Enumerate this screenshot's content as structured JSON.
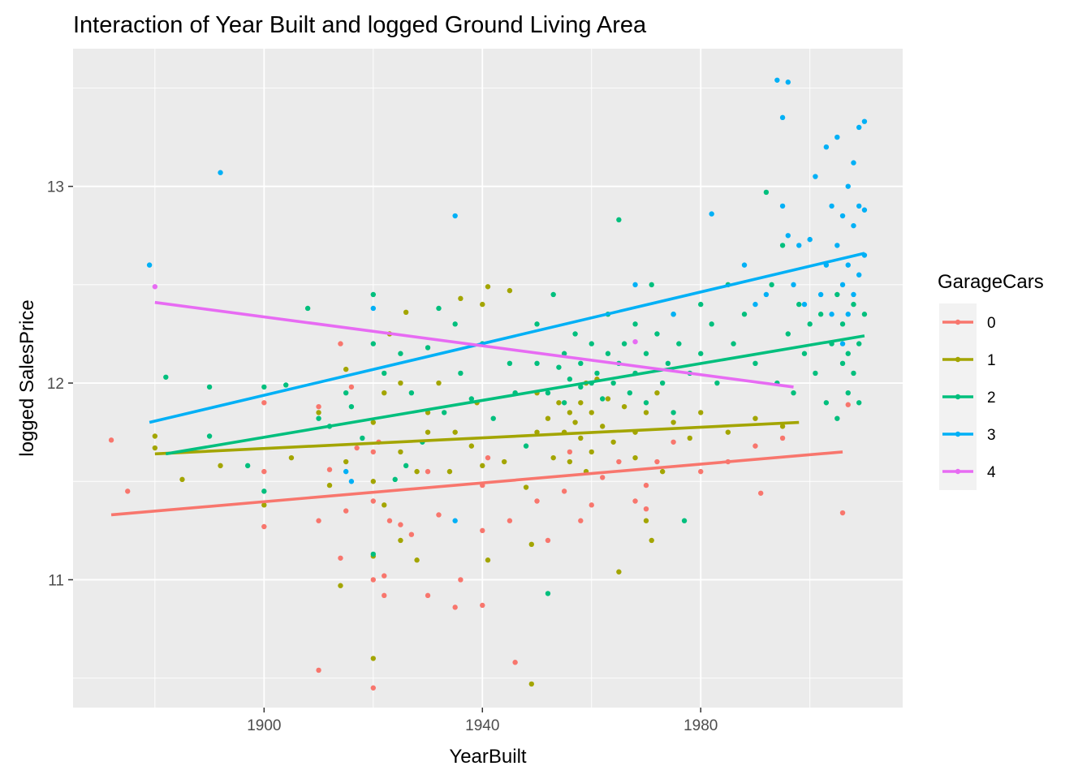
{
  "chart_data": {
    "type": "scatter",
    "title": "Interaction of Year Built and logged Ground Living Area",
    "xlabel": "YearBuilt",
    "ylabel": "logged SalesPrice",
    "xlim": [
      1865,
      2017
    ],
    "ylim": [
      10.35,
      13.7
    ],
    "x_ticks": [
      1900,
      1940,
      1980
    ],
    "y_ticks": [
      11,
      12,
      13
    ],
    "grid": true,
    "legend": {
      "title": "GarageCars",
      "position": "right"
    },
    "series": [
      {
        "name": "0",
        "color": "#F8766D",
        "trend": [
          [
            1872,
            11.33
          ],
          [
            2006,
            11.65
          ]
        ],
        "points": [
          [
            1872,
            11.71
          ],
          [
            1875,
            11.45
          ],
          [
            1900,
            11.9
          ],
          [
            1900,
            11.55
          ],
          [
            1900,
            11.27
          ],
          [
            1910,
            10.54
          ],
          [
            1910,
            11.3
          ],
          [
            1910,
            11.88
          ],
          [
            1912,
            11.56
          ],
          [
            1914,
            11.11
          ],
          [
            1914,
            12.2
          ],
          [
            1915,
            11.35
          ],
          [
            1916,
            11.98
          ],
          [
            1917,
            11.67
          ],
          [
            1920,
            11.65
          ],
          [
            1920,
            11.4
          ],
          [
            1920,
            11.0
          ],
          [
            1920,
            10.45
          ],
          [
            1921,
            11.7
          ],
          [
            1922,
            10.92
          ],
          [
            1922,
            11.02
          ],
          [
            1923,
            11.3
          ],
          [
            1925,
            11.28
          ],
          [
            1927,
            11.23
          ],
          [
            1930,
            11.55
          ],
          [
            1930,
            10.92
          ],
          [
            1932,
            11.33
          ],
          [
            1935,
            10.86
          ],
          [
            1936,
            11.0
          ],
          [
            1940,
            10.87
          ],
          [
            1940,
            11.25
          ],
          [
            1940,
            11.48
          ],
          [
            1941,
            11.62
          ],
          [
            1945,
            11.3
          ],
          [
            1946,
            10.58
          ],
          [
            1950,
            11.4
          ],
          [
            1952,
            11.2
          ],
          [
            1955,
            11.45
          ],
          [
            1956,
            11.65
          ],
          [
            1958,
            11.3
          ],
          [
            1960,
            11.38
          ],
          [
            1962,
            11.52
          ],
          [
            1965,
            11.6
          ],
          [
            1968,
            11.4
          ],
          [
            1970,
            11.48
          ],
          [
            1970,
            11.36
          ],
          [
            1972,
            11.6
          ],
          [
            1975,
            11.7
          ],
          [
            1980,
            11.55
          ],
          [
            1985,
            11.6
          ],
          [
            1990,
            11.68
          ],
          [
            1991,
            11.44
          ],
          [
            1995,
            11.72
          ],
          [
            2006,
            11.34
          ],
          [
            2007,
            11.89
          ]
        ]
      },
      {
        "name": "1",
        "color": "#A3A500",
        "trend": [
          [
            1880,
            11.64
          ],
          [
            1998,
            11.8
          ]
        ],
        "points": [
          [
            1880,
            11.73
          ],
          [
            1880,
            11.67
          ],
          [
            1885,
            11.51
          ],
          [
            1892,
            11.58
          ],
          [
            1900,
            11.38
          ],
          [
            1905,
            11.62
          ],
          [
            1910,
            11.85
          ],
          [
            1912,
            11.48
          ],
          [
            1914,
            10.97
          ],
          [
            1915,
            11.6
          ],
          [
            1915,
            12.07
          ],
          [
            1920,
            11.8
          ],
          [
            1920,
            11.5
          ],
          [
            1920,
            10.6
          ],
          [
            1920,
            11.12
          ],
          [
            1922,
            11.95
          ],
          [
            1922,
            11.38
          ],
          [
            1923,
            12.25
          ],
          [
            1925,
            12.0
          ],
          [
            1925,
            11.65
          ],
          [
            1925,
            11.2
          ],
          [
            1926,
            12.36
          ],
          [
            1928,
            11.55
          ],
          [
            1928,
            11.1
          ],
          [
            1930,
            11.75
          ],
          [
            1930,
            11.85
          ],
          [
            1932,
            12.0
          ],
          [
            1934,
            11.55
          ],
          [
            1935,
            11.75
          ],
          [
            1936,
            12.43
          ],
          [
            1938,
            11.68
          ],
          [
            1939,
            11.9
          ],
          [
            1940,
            12.4
          ],
          [
            1940,
            11.58
          ],
          [
            1941,
            12.49
          ],
          [
            1941,
            11.1
          ],
          [
            1944,
            11.6
          ],
          [
            1945,
            12.47
          ],
          [
            1948,
            11.47
          ],
          [
            1949,
            11.18
          ],
          [
            1949,
            10.47
          ],
          [
            1950,
            11.75
          ],
          [
            1950,
            11.95
          ],
          [
            1952,
            11.82
          ],
          [
            1953,
            11.62
          ],
          [
            1954,
            11.9
          ],
          [
            1955,
            11.75
          ],
          [
            1956,
            11.85
          ],
          [
            1956,
            11.6
          ],
          [
            1957,
            11.8
          ],
          [
            1958,
            11.9
          ],
          [
            1958,
            11.72
          ],
          [
            1959,
            12.0
          ],
          [
            1959,
            11.55
          ],
          [
            1960,
            11.85
          ],
          [
            1960,
            11.65
          ],
          [
            1961,
            12.02
          ],
          [
            1962,
            11.78
          ],
          [
            1963,
            11.92
          ],
          [
            1964,
            11.7
          ],
          [
            1965,
            11.04
          ],
          [
            1966,
            11.88
          ],
          [
            1968,
            11.75
          ],
          [
            1968,
            11.62
          ],
          [
            1970,
            11.85
          ],
          [
            1970,
            11.3
          ],
          [
            1971,
            11.2
          ],
          [
            1972,
            11.95
          ],
          [
            1973,
            11.55
          ],
          [
            1975,
            11.8
          ],
          [
            1978,
            11.72
          ],
          [
            1980,
            11.85
          ],
          [
            1985,
            11.75
          ],
          [
            1990,
            11.82
          ],
          [
            1995,
            11.78
          ]
        ]
      },
      {
        "name": "2",
        "color": "#00BF7D",
        "trend": [
          [
            1882,
            11.64
          ],
          [
            2010,
            12.24
          ]
        ],
        "points": [
          [
            1882,
            12.03
          ],
          [
            1890,
            11.98
          ],
          [
            1890,
            11.73
          ],
          [
            1897,
            11.58
          ],
          [
            1900,
            11.98
          ],
          [
            1900,
            11.45
          ],
          [
            1904,
            11.99
          ],
          [
            1908,
            12.38
          ],
          [
            1910,
            11.82
          ],
          [
            1912,
            11.78
          ],
          [
            1915,
            11.95
          ],
          [
            1916,
            11.88
          ],
          [
            1918,
            11.72
          ],
          [
            1920,
            12.45
          ],
          [
            1920,
            12.2
          ],
          [
            1920,
            11.13
          ],
          [
            1922,
            12.05
          ],
          [
            1924,
            11.51
          ],
          [
            1925,
            12.15
          ],
          [
            1926,
            11.58
          ],
          [
            1927,
            11.95
          ],
          [
            1929,
            11.7
          ],
          [
            1930,
            12.18
          ],
          [
            1932,
            12.38
          ],
          [
            1933,
            11.85
          ],
          [
            1935,
            12.3
          ],
          [
            1936,
            12.05
          ],
          [
            1938,
            11.92
          ],
          [
            1940,
            12.2
          ],
          [
            1942,
            11.82
          ],
          [
            1945,
            12.1
          ],
          [
            1946,
            11.95
          ],
          [
            1948,
            11.68
          ],
          [
            1950,
            12.3
          ],
          [
            1950,
            12.1
          ],
          [
            1952,
            10.93
          ],
          [
            1952,
            11.95
          ],
          [
            1953,
            12.45
          ],
          [
            1954,
            12.08
          ],
          [
            1955,
            12.15
          ],
          [
            1955,
            11.9
          ],
          [
            1956,
            12.02
          ],
          [
            1957,
            12.25
          ],
          [
            1958,
            11.98
          ],
          [
            1958,
            12.1
          ],
          [
            1960,
            12.0
          ],
          [
            1960,
            12.2
          ],
          [
            1961,
            12.05
          ],
          [
            1962,
            11.92
          ],
          [
            1963,
            12.15
          ],
          [
            1963,
            12.35
          ],
          [
            1964,
            12.0
          ],
          [
            1965,
            12.83
          ],
          [
            1965,
            12.1
          ],
          [
            1966,
            12.2
          ],
          [
            1967,
            11.95
          ],
          [
            1968,
            12.3
          ],
          [
            1968,
            12.05
          ],
          [
            1970,
            12.15
          ],
          [
            1970,
            11.9
          ],
          [
            1971,
            12.5
          ],
          [
            1972,
            12.25
          ],
          [
            1973,
            12.0
          ],
          [
            1974,
            12.1
          ],
          [
            1975,
            12.35
          ],
          [
            1975,
            11.85
          ],
          [
            1976,
            12.2
          ],
          [
            1977,
            11.3
          ],
          [
            1978,
            12.05
          ],
          [
            1980,
            12.4
          ],
          [
            1980,
            12.15
          ],
          [
            1982,
            12.3
          ],
          [
            1983,
            12.0
          ],
          [
            1985,
            12.5
          ],
          [
            1986,
            12.2
          ],
          [
            1988,
            12.35
          ],
          [
            1990,
            12.1
          ],
          [
            1992,
            12.97
          ],
          [
            1993,
            12.5
          ],
          [
            1994,
            12.0
          ],
          [
            1995,
            12.7
          ],
          [
            1996,
            12.25
          ],
          [
            1997,
            11.95
          ],
          [
            1998,
            12.4
          ],
          [
            1999,
            12.15
          ],
          [
            2000,
            12.3
          ],
          [
            2001,
            12.05
          ],
          [
            2002,
            12.35
          ],
          [
            2003,
            11.9
          ],
          [
            2004,
            12.2
          ],
          [
            2005,
            11.82
          ],
          [
            2005,
            12.45
          ],
          [
            2006,
            12.1
          ],
          [
            2006,
            12.3
          ],
          [
            2007,
            11.95
          ],
          [
            2007,
            12.15
          ],
          [
            2008,
            12.05
          ],
          [
            2008,
            12.4
          ],
          [
            2009,
            12.2
          ],
          [
            2009,
            11.9
          ],
          [
            2010,
            12.35
          ]
        ]
      },
      {
        "name": "3",
        "color": "#00B0F6",
        "trend": [
          [
            1879,
            11.8
          ],
          [
            2010,
            12.66
          ]
        ],
        "points": [
          [
            1879,
            12.6
          ],
          [
            1892,
            13.07
          ],
          [
            1915,
            11.55
          ],
          [
            1916,
            11.5
          ],
          [
            1920,
            12.38
          ],
          [
            1935,
            12.85
          ],
          [
            1935,
            11.3
          ],
          [
            1968,
            12.5
          ],
          [
            1975,
            12.35
          ],
          [
            1982,
            12.86
          ],
          [
            1988,
            12.6
          ],
          [
            1990,
            12.4
          ],
          [
            1992,
            12.45
          ],
          [
            1994,
            13.54
          ],
          [
            1995,
            13.35
          ],
          [
            1995,
            12.9
          ],
          [
            1996,
            13.53
          ],
          [
            1996,
            12.75
          ],
          [
            1997,
            12.5
          ],
          [
            1998,
            12.7
          ],
          [
            1999,
            12.4
          ],
          [
            2000,
            12.73
          ],
          [
            2001,
            13.05
          ],
          [
            2002,
            12.45
          ],
          [
            2003,
            13.2
          ],
          [
            2003,
            12.6
          ],
          [
            2004,
            12.9
          ],
          [
            2004,
            12.35
          ],
          [
            2005,
            13.25
          ],
          [
            2005,
            12.7
          ],
          [
            2006,
            12.2
          ],
          [
            2006,
            12.85
          ],
          [
            2006,
            12.5
          ],
          [
            2007,
            13.0
          ],
          [
            2007,
            12.6
          ],
          [
            2007,
            12.35
          ],
          [
            2008,
            13.12
          ],
          [
            2008,
            12.8
          ],
          [
            2008,
            12.45
          ],
          [
            2009,
            13.3
          ],
          [
            2009,
            12.9
          ],
          [
            2009,
            12.55
          ],
          [
            2010,
            13.33
          ],
          [
            2010,
            12.88
          ],
          [
            2010,
            12.65
          ]
        ]
      },
      {
        "name": "4",
        "color": "#E76BF3",
        "trend": [
          [
            1880,
            12.41
          ],
          [
            1997,
            11.98
          ]
        ],
        "points": [
          [
            1880,
            12.49
          ],
          [
            1968,
            12.21
          ]
        ]
      }
    ]
  }
}
